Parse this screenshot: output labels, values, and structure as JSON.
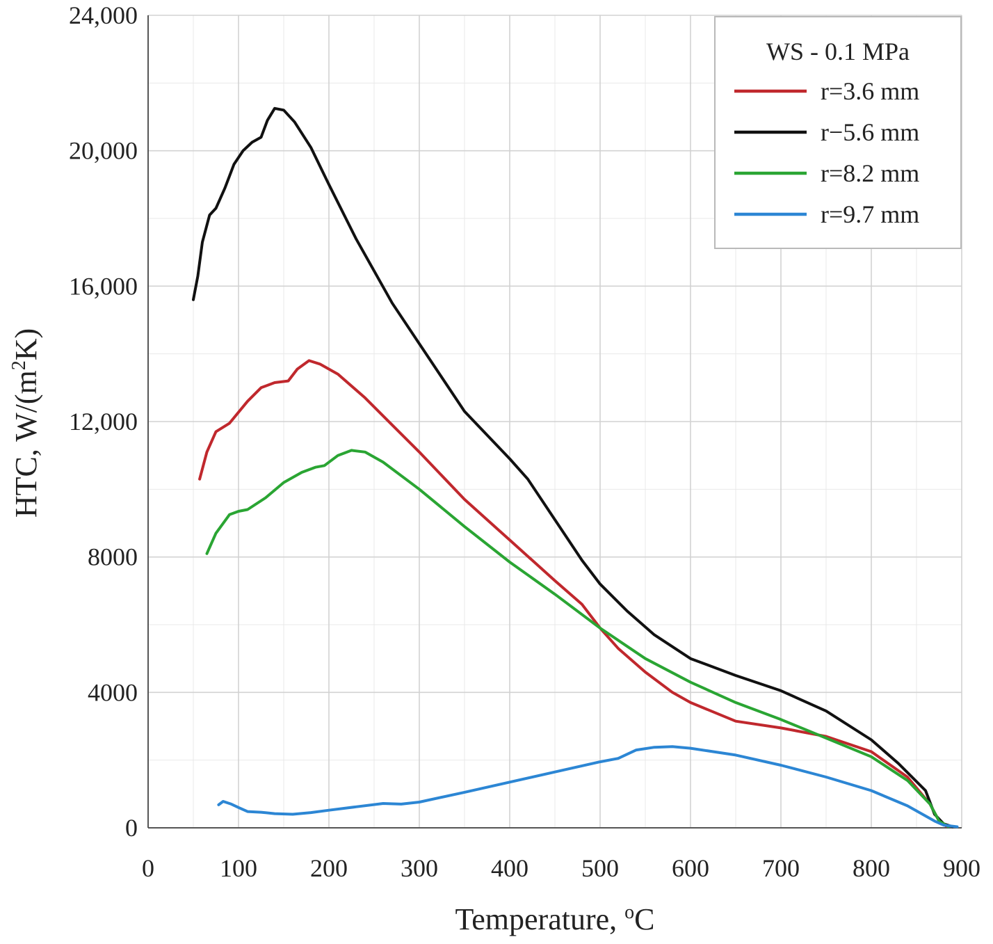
{
  "chart_data": {
    "type": "line",
    "title": "",
    "xlabel": "Temperature, ",
    "xlabel_sup": "o",
    "xlabel_suffix": "C",
    "ylabel": "HTC, W/(m",
    "ylabel_sup": "2",
    "ylabel_suffix": "K)",
    "xlim": [
      0,
      900
    ],
    "ylim": [
      0,
      24000
    ],
    "x_ticks": [
      0,
      100,
      200,
      300,
      400,
      500,
      600,
      700,
      800,
      900
    ],
    "x_tick_labels": [
      "0",
      "100",
      "200",
      "300",
      "400",
      "500",
      "600",
      "700",
      "800",
      "900"
    ],
    "y_ticks": [
      0,
      4000,
      8000,
      12000,
      16000,
      20000,
      24000
    ],
    "y_tick_labels": [
      "0",
      "4000",
      "8000",
      "12,000",
      "16,000",
      "20,000",
      "24,000"
    ],
    "x_minor_step": 50,
    "y_minor_step": 2000,
    "grid": true,
    "legend": {
      "title": "WS - 0.1 MPa",
      "placement": "top-right"
    },
    "series": [
      {
        "name": "r=3.6 mm",
        "color": "#c0282d",
        "points": [
          [
            57,
            10300
          ],
          [
            65,
            11100
          ],
          [
            75,
            11700
          ],
          [
            90,
            11950
          ],
          [
            110,
            12600
          ],
          [
            125,
            13000
          ],
          [
            140,
            13150
          ],
          [
            155,
            13200
          ],
          [
            165,
            13550
          ],
          [
            178,
            13800
          ],
          [
            190,
            13700
          ],
          [
            210,
            13400
          ],
          [
            240,
            12700
          ],
          [
            270,
            11900
          ],
          [
            300,
            11100
          ],
          [
            350,
            9700
          ],
          [
            400,
            8500
          ],
          [
            450,
            7300
          ],
          [
            480,
            6600
          ],
          [
            500,
            5900
          ],
          [
            520,
            5300
          ],
          [
            550,
            4600
          ],
          [
            580,
            4000
          ],
          [
            600,
            3700
          ],
          [
            650,
            3150
          ],
          [
            700,
            2950
          ],
          [
            750,
            2700
          ],
          [
            800,
            2250
          ],
          [
            840,
            1500
          ],
          [
            865,
            700
          ],
          [
            875,
            200
          ],
          [
            883,
            50
          ]
        ]
      },
      {
        "name": "r−5.6 mm",
        "color": "#111111",
        "points": [
          [
            50,
            15600
          ],
          [
            55,
            16300
          ],
          [
            60,
            17300
          ],
          [
            68,
            18100
          ],
          [
            75,
            18300
          ],
          [
            85,
            18900
          ],
          [
            95,
            19600
          ],
          [
            105,
            20000
          ],
          [
            115,
            20250
          ],
          [
            125,
            20400
          ],
          [
            132,
            20900
          ],
          [
            140,
            21250
          ],
          [
            150,
            21200
          ],
          [
            162,
            20850
          ],
          [
            180,
            20100
          ],
          [
            200,
            19000
          ],
          [
            230,
            17400
          ],
          [
            270,
            15500
          ],
          [
            300,
            14300
          ],
          [
            350,
            12300
          ],
          [
            400,
            10900
          ],
          [
            420,
            10300
          ],
          [
            450,
            9100
          ],
          [
            480,
            7900
          ],
          [
            500,
            7200
          ],
          [
            530,
            6400
          ],
          [
            560,
            5700
          ],
          [
            600,
            5000
          ],
          [
            650,
            4500
          ],
          [
            700,
            4050
          ],
          [
            750,
            3450
          ],
          [
            800,
            2600
          ],
          [
            830,
            1900
          ],
          [
            860,
            1100
          ],
          [
            870,
            400
          ],
          [
            880,
            120
          ],
          [
            890,
            30
          ]
        ]
      },
      {
        "name": "r=8.2 mm",
        "color": "#2aa533",
        "points": [
          [
            65,
            8100
          ],
          [
            75,
            8700
          ],
          [
            90,
            9250
          ],
          [
            100,
            9350
          ],
          [
            110,
            9400
          ],
          [
            130,
            9750
          ],
          [
            150,
            10200
          ],
          [
            170,
            10500
          ],
          [
            185,
            10650
          ],
          [
            195,
            10700
          ],
          [
            210,
            11000
          ],
          [
            225,
            11150
          ],
          [
            240,
            11100
          ],
          [
            260,
            10800
          ],
          [
            300,
            10000
          ],
          [
            350,
            8900
          ],
          [
            400,
            7850
          ],
          [
            450,
            6900
          ],
          [
            500,
            5900
          ],
          [
            550,
            5000
          ],
          [
            600,
            4300
          ],
          [
            650,
            3700
          ],
          [
            700,
            3200
          ],
          [
            750,
            2650
          ],
          [
            800,
            2100
          ],
          [
            840,
            1400
          ],
          [
            865,
            700
          ],
          [
            875,
            200
          ],
          [
            885,
            40
          ]
        ]
      },
      {
        "name": "r=9.7 mm",
        "color": "#2c86d4",
        "points": [
          [
            78,
            680
          ],
          [
            83,
            780
          ],
          [
            92,
            700
          ],
          [
            100,
            600
          ],
          [
            110,
            480
          ],
          [
            125,
            460
          ],
          [
            140,
            420
          ],
          [
            160,
            400
          ],
          [
            180,
            450
          ],
          [
            200,
            520
          ],
          [
            230,
            620
          ],
          [
            260,
            720
          ],
          [
            280,
            700
          ],
          [
            300,
            760
          ],
          [
            350,
            1050
          ],
          [
            400,
            1350
          ],
          [
            450,
            1650
          ],
          [
            500,
            1950
          ],
          [
            520,
            2050
          ],
          [
            540,
            2300
          ],
          [
            560,
            2380
          ],
          [
            580,
            2400
          ],
          [
            600,
            2350
          ],
          [
            650,
            2150
          ],
          [
            700,
            1850
          ],
          [
            750,
            1500
          ],
          [
            800,
            1100
          ],
          [
            840,
            650
          ],
          [
            870,
            200
          ],
          [
            880,
            80
          ],
          [
            895,
            30
          ]
        ]
      }
    ]
  }
}
